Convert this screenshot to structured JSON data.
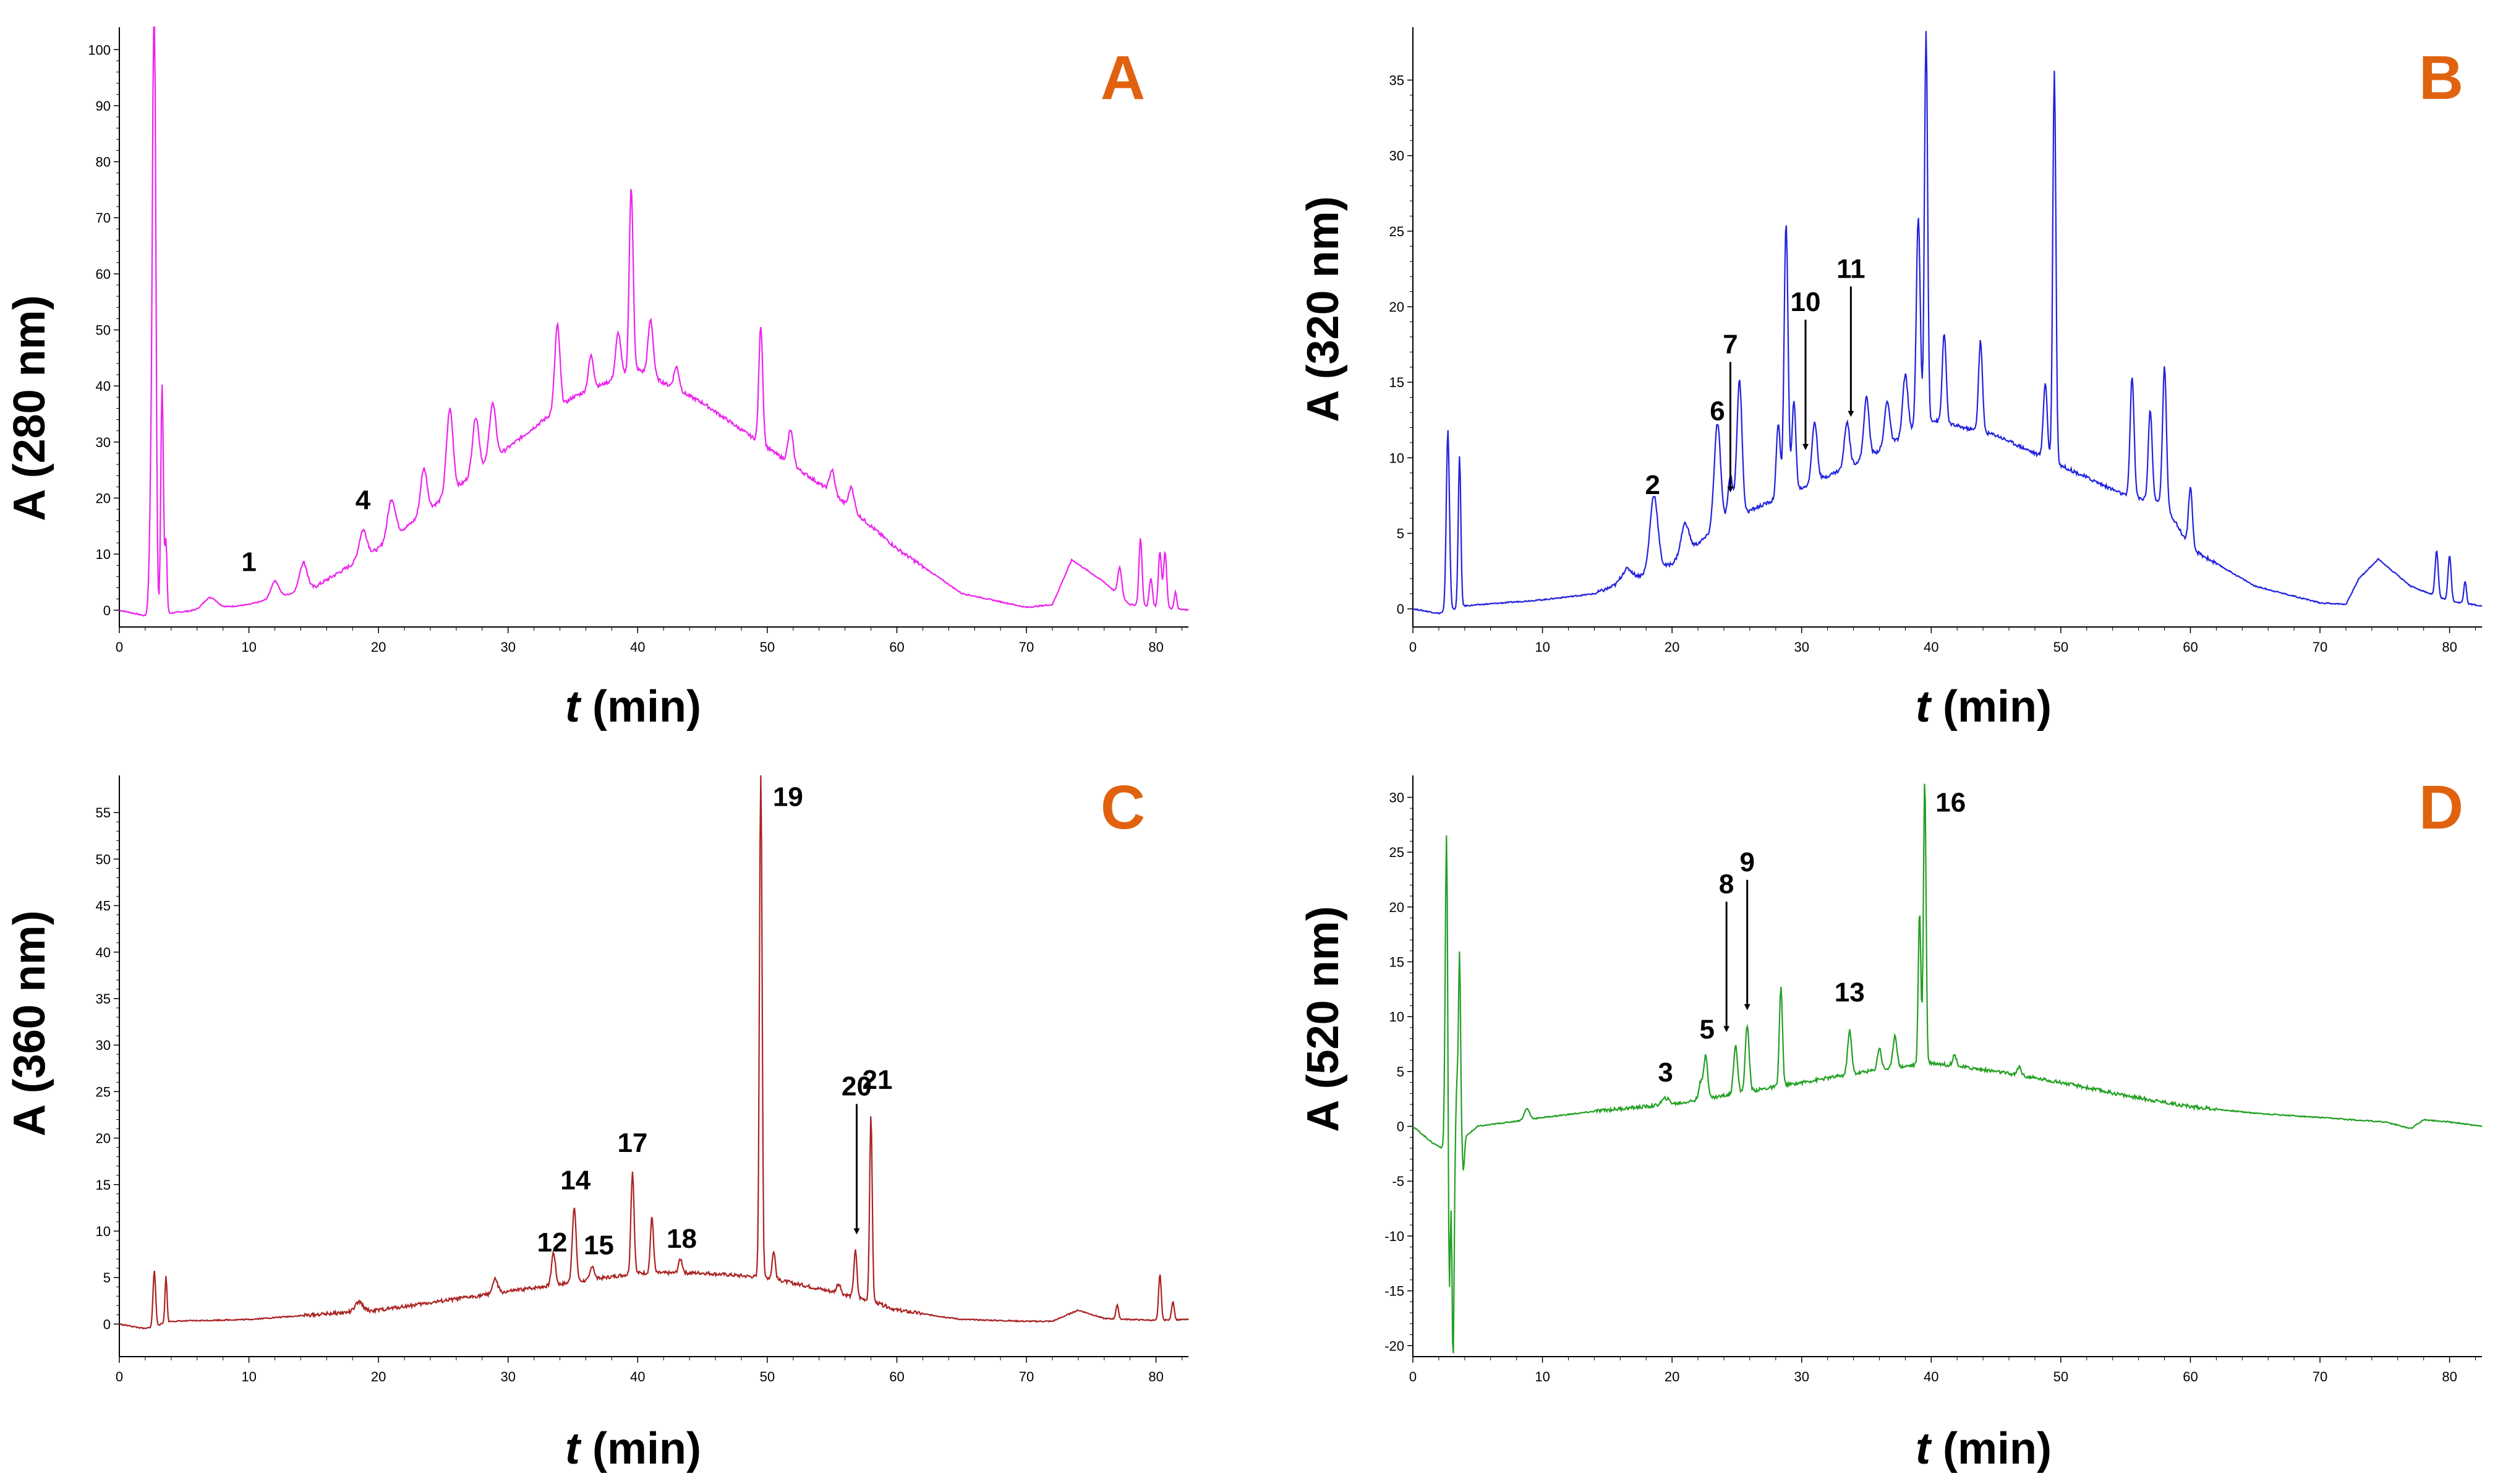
{
  "figure": {
    "colors": {
      "A": "#ee22ee",
      "B": "#2222dd",
      "C": "#aa2222",
      "D": "#22a022",
      "panel_letter": "#E0620F"
    }
  },
  "chart_data": [
    {
      "id": "A",
      "type": "line",
      "panel_label": "A",
      "ylabel": "A (280 nm)",
      "xlabel_italic": "t",
      "xlabel_rest": " (min)",
      "xlim": [
        0,
        82.5
      ],
      "ylim": [
        -3,
        104
      ],
      "xticks": [
        0,
        10,
        20,
        30,
        40,
        50,
        60,
        70,
        80
      ],
      "yticks": [
        0,
        10,
        20,
        30,
        40,
        50,
        60,
        70,
        80,
        90,
        100
      ],
      "baseline_points": [
        [
          0,
          0
        ],
        [
          2,
          -1
        ],
        [
          6,
          0
        ],
        [
          10,
          1
        ],
        [
          15,
          4
        ],
        [
          20,
          11
        ],
        [
          25,
          20
        ],
        [
          30,
          29
        ],
        [
          35,
          38
        ],
        [
          40,
          43
        ],
        [
          45,
          37
        ],
        [
          50,
          29
        ],
        [
          55,
          21
        ],
        [
          60,
          11
        ],
        [
          65,
          3
        ],
        [
          70,
          0.5
        ],
        [
          72,
          1
        ],
        [
          73.5,
          9
        ],
        [
          76,
          5
        ],
        [
          78,
          1
        ],
        [
          82.5,
          0
        ]
      ],
      "peaks": [
        [
          2.5,
          26,
          0.15
        ],
        [
          2.7,
          105,
          0.12
        ],
        [
          3.3,
          41,
          0.1
        ],
        [
          3.6,
          13,
          0.08
        ],
        [
          7,
          2,
          0.5
        ],
        [
          12,
          3,
          0.3
        ],
        [
          14.2,
          5,
          0.3
        ],
        [
          18.8,
          5,
          0.3
        ],
        [
          21,
          7,
          0.3
        ],
        [
          23.5,
          8,
          0.25
        ],
        [
          25.5,
          15,
          0.25
        ],
        [
          27.5,
          10,
          0.25
        ],
        [
          28.8,
          10,
          0.25
        ],
        [
          33.8,
          15,
          0.2
        ],
        [
          36.4,
          6,
          0.2
        ],
        [
          38.5,
          8,
          0.2
        ],
        [
          39.5,
          33,
          0.15
        ],
        [
          41,
          10,
          0.2
        ],
        [
          43,
          4,
          0.2
        ],
        [
          49.5,
          21,
          0.15
        ],
        [
          51.8,
          6,
          0.2
        ],
        [
          55,
          4,
          0.2
        ],
        [
          56.5,
          4,
          0.2
        ],
        [
          77.2,
          5,
          0.15
        ],
        [
          78.8,
          12,
          0.12
        ],
        [
          79.6,
          5,
          0.12
        ],
        [
          80.3,
          10,
          0.12
        ],
        [
          80.7,
          10,
          0.12
        ],
        [
          81.5,
          3,
          0.1
        ]
      ],
      "annotations": [
        {
          "label": "1",
          "x": 10,
          "y": 7,
          "arrow": false
        },
        {
          "label": "4",
          "x": 18.8,
          "y": 18,
          "arrow": false
        }
      ]
    },
    {
      "id": "B",
      "type": "line",
      "panel_label": "B",
      "ylabel": "A (320 nm)",
      "xlabel_italic": "t",
      "xlabel_rest": " (min)",
      "xlim": [
        0,
        82.5
      ],
      "ylim": [
        -1.2,
        38.5
      ],
      "xticks": [
        0,
        10,
        20,
        30,
        40,
        50,
        60,
        70,
        80
      ],
      "yticks": [
        0,
        5,
        10,
        15,
        20,
        25,
        30,
        35
      ],
      "baseline_points": [
        [
          0,
          0
        ],
        [
          2,
          -0.3
        ],
        [
          4,
          0.2
        ],
        [
          10,
          0.6
        ],
        [
          14,
          1
        ],
        [
          17,
          2
        ],
        [
          20,
          3
        ],
        [
          23,
          5
        ],
        [
          26,
          6.5
        ],
        [
          30,
          8
        ],
        [
          35,
          10
        ],
        [
          40,
          12.5
        ],
        [
          45,
          11.5
        ],
        [
          50,
          9.5
        ],
        [
          55,
          7.5
        ],
        [
          58,
          7
        ],
        [
          60,
          4
        ],
        [
          65,
          1.5
        ],
        [
          70,
          0.4
        ],
        [
          72,
          0.3
        ],
        [
          73,
          2
        ],
        [
          74.5,
          3.3
        ],
        [
          77,
          1.5
        ],
        [
          80,
          0.5
        ],
        [
          82.5,
          0.2
        ]
      ],
      "peaks": [
        [
          2.7,
          12,
          0.12
        ],
        [
          3.6,
          10,
          0.1
        ],
        [
          16.5,
          0.8,
          0.4
        ],
        [
          18.6,
          5,
          0.3
        ],
        [
          21,
          2,
          0.3
        ],
        [
          23.5,
          7,
          0.25
        ],
        [
          24.5,
          3,
          0.2
        ],
        [
          25.2,
          9,
          0.2
        ],
        [
          28.2,
          5,
          0.15
        ],
        [
          28.8,
          18,
          0.15
        ],
        [
          29.4,
          6,
          0.15
        ],
        [
          31,
          4,
          0.2
        ],
        [
          33.5,
          3,
          0.2
        ],
        [
          35,
          4,
          0.2
        ],
        [
          36.6,
          3,
          0.2
        ],
        [
          38,
          4,
          0.2
        ],
        [
          39,
          14,
          0.15
        ],
        [
          39.6,
          26,
          0.12
        ],
        [
          41,
          6,
          0.15
        ],
        [
          43.8,
          6,
          0.15
        ],
        [
          48.8,
          5,
          0.15
        ],
        [
          49.5,
          26,
          0.12
        ],
        [
          55.5,
          8,
          0.15
        ],
        [
          56.9,
          6,
          0.15
        ],
        [
          58,
          9,
          0.15
        ],
        [
          60,
          4,
          0.15
        ],
        [
          79,
          3,
          0.12
        ],
        [
          80,
          3,
          0.12
        ],
        [
          81.2,
          1.5,
          0.1
        ]
      ],
      "annotations": [
        {
          "label": "2",
          "x": 18.5,
          "y": 7.6,
          "arrow": false
        },
        {
          "label": "6",
          "x": 23.5,
          "y": 12.5,
          "arrow": false
        },
        {
          "label": "7",
          "x": 24.5,
          "y": 7.5,
          "arrow": true
        },
        {
          "label": "10",
          "x": 30.3,
          "y": 10.3,
          "arrow": true
        },
        {
          "label": "11",
          "x": 33.8,
          "y": 12.5,
          "arrow": true
        }
      ]
    },
    {
      "id": "C",
      "type": "line",
      "panel_label": "C",
      "ylabel": "A (360 nm)",
      "xlabel_italic": "t",
      "xlabel_rest": " (min)",
      "xlim": [
        0,
        82.5
      ],
      "ylim": [
        -3.5,
        59
      ],
      "xticks": [
        0,
        10,
        20,
        30,
        40,
        50,
        60,
        70,
        80
      ],
      "yticks": [
        0,
        5,
        10,
        15,
        20,
        25,
        30,
        35,
        40,
        45,
        50,
        55
      ],
      "baseline_points": [
        [
          0,
          0
        ],
        [
          2,
          -0.5
        ],
        [
          4,
          0.3
        ],
        [
          10,
          0.5
        ],
        [
          15,
          1
        ],
        [
          20,
          1.5
        ],
        [
          25,
          2.5
        ],
        [
          30,
          3.5
        ],
        [
          35,
          4.5
        ],
        [
          40,
          5.5
        ],
        [
          45,
          5.5
        ],
        [
          50,
          5
        ],
        [
          55,
          3.5
        ],
        [
          58,
          2.5
        ],
        [
          60,
          1.5
        ],
        [
          65,
          0.5
        ],
        [
          70,
          0.3
        ],
        [
          72,
          0.3
        ],
        [
          74,
          1.5
        ],
        [
          76,
          0.6
        ],
        [
          80,
          0.4
        ],
        [
          82.5,
          0.5
        ]
      ],
      "peaks": [
        [
          2.7,
          6,
          0.1
        ],
        [
          3.6,
          5,
          0.08
        ],
        [
          18.5,
          1,
          0.3
        ],
        [
          29,
          1.5,
          0.2
        ],
        [
          33.5,
          3.5,
          0.15
        ],
        [
          35.1,
          8,
          0.15
        ],
        [
          36.5,
          1.5,
          0.15
        ],
        [
          39.6,
          11,
          0.12
        ],
        [
          41.1,
          6,
          0.12
        ],
        [
          43.3,
          1.5,
          0.15
        ],
        [
          49.5,
          56,
          0.1
        ],
        [
          50.5,
          3,
          0.12
        ],
        [
          55.5,
          1,
          0.15
        ],
        [
          56.8,
          5,
          0.12
        ],
        [
          58,
          20,
          0.1
        ],
        [
          77,
          1.5,
          0.1
        ],
        [
          80.3,
          5,
          0.1
        ],
        [
          81.3,
          2,
          0.1
        ]
      ],
      "annotations": [
        {
          "label": "12",
          "x": 33.4,
          "y": 7.8,
          "arrow": false
        },
        {
          "label": "14",
          "x": 35.2,
          "y": 14.5,
          "arrow": false
        },
        {
          "label": "15",
          "x": 37,
          "y": 7.5,
          "arrow": false
        },
        {
          "label": "17",
          "x": 39.6,
          "y": 18.5,
          "arrow": false
        },
        {
          "label": "18",
          "x": 43.4,
          "y": 8.2,
          "arrow": false
        },
        {
          "label": "19",
          "x": 51.6,
          "y": 55.7,
          "arrow": false
        },
        {
          "label": "20",
          "x": 56.9,
          "y": 9.3,
          "arrow": true
        },
        {
          "label": "21",
          "x": 58.5,
          "y": 25.3,
          "arrow": false
        }
      ]
    },
    {
      "id": "D",
      "type": "line",
      "panel_label": "D",
      "ylabel": "A (520 nm)",
      "xlabel_italic": "t",
      "xlabel_rest": " (min)",
      "xlim": [
        0,
        82.5
      ],
      "ylim": [
        -21,
        32
      ],
      "xticks": [
        0,
        10,
        20,
        30,
        40,
        50,
        60,
        70,
        80
      ],
      "yticks": [
        -20,
        -15,
        -10,
        -5,
        0,
        5,
        10,
        15,
        20,
        25,
        30
      ],
      "baseline_points": [
        [
          0,
          0
        ],
        [
          1.5,
          -1.5
        ],
        [
          2.3,
          -2
        ],
        [
          4,
          -1
        ],
        [
          5,
          0
        ],
        [
          10,
          0.8
        ],
        [
          15,
          1.5
        ],
        [
          20,
          2
        ],
        [
          25,
          3
        ],
        [
          30,
          4
        ],
        [
          35,
          5
        ],
        [
          40,
          5.8
        ],
        [
          45,
          5
        ],
        [
          50,
          4
        ],
        [
          55,
          2.8
        ],
        [
          60,
          1.8
        ],
        [
          65,
          1.2
        ],
        [
          70,
          0.8
        ],
        [
          75,
          0.4
        ],
        [
          77,
          -0.2
        ],
        [
          78,
          0.6
        ],
        [
          80,
          0.4
        ],
        [
          82.5,
          0
        ]
      ],
      "peaks": [
        [
          2.6,
          29,
          0.1
        ],
        [
          2.8,
          -16,
          0.08
        ],
        [
          3.1,
          -20,
          0.08
        ],
        [
          3.4,
          5,
          0.08
        ],
        [
          3.6,
          17,
          0.08
        ],
        [
          3.9,
          -3,
          0.08
        ],
        [
          8.8,
          1,
          0.2
        ],
        [
          19.5,
          0.6,
          0.3
        ],
        [
          22.2,
          1.5,
          0.15
        ],
        [
          22.6,
          4,
          0.15
        ],
        [
          24.9,
          4.5,
          0.15
        ],
        [
          25.8,
          6,
          0.15
        ],
        [
          28.4,
          9,
          0.12
        ],
        [
          33.7,
          4,
          0.15
        ],
        [
          36,
          2,
          0.15
        ],
        [
          37.2,
          3,
          0.15
        ],
        [
          39.1,
          14,
          0.1
        ],
        [
          39.5,
          26,
          0.1
        ],
        [
          41.8,
          1,
          0.15
        ],
        [
          46.8,
          0.8,
          0.15
        ]
      ],
      "annotations": [
        {
          "label": "3",
          "x": 19.5,
          "y": 4.1,
          "arrow": false
        },
        {
          "label": "5",
          "x": 22.7,
          "y": 8,
          "arrow": false
        },
        {
          "label": "8",
          "x": 24.2,
          "y": 8.3,
          "arrow": true
        },
        {
          "label": "9",
          "x": 25.8,
          "y": 10.3,
          "arrow": true
        },
        {
          "label": "13",
          "x": 33.7,
          "y": 11.4,
          "arrow": false
        },
        {
          "label": "16",
          "x": 41.5,
          "y": 28.7,
          "arrow": false
        }
      ]
    }
  ]
}
